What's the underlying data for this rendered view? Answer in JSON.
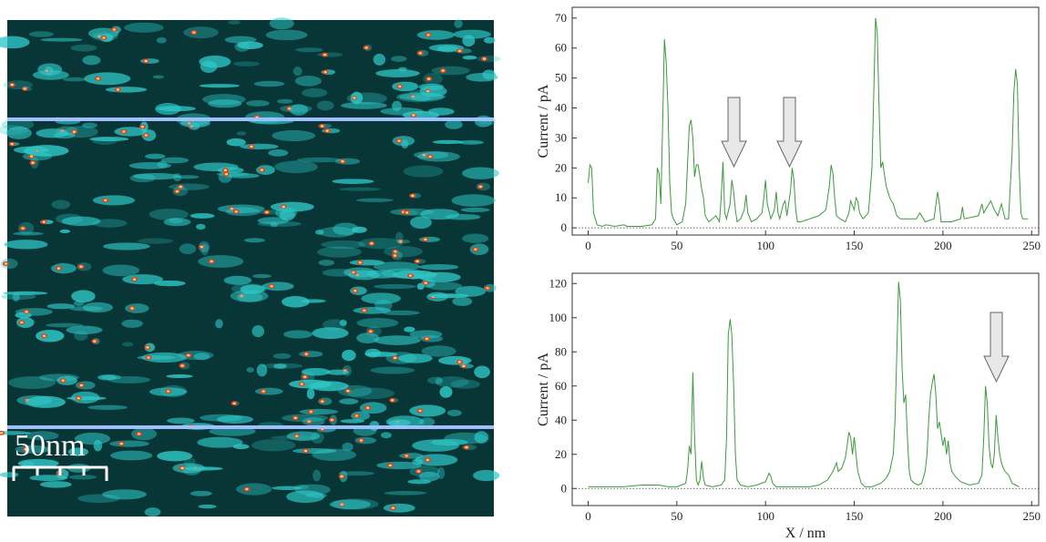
{
  "image": {
    "scale_label": "50nm"
  },
  "chart_data": [
    {
      "type": "line",
      "y_label": "Current / pA",
      "color": "#3c9a3c",
      "xlim": [
        -9,
        254
      ],
      "ylim": [
        -2.4,
        73.6
      ],
      "xticks": [
        0,
        50,
        100,
        150,
        200,
        250
      ],
      "yticks": [
        0,
        10,
        20,
        30,
        40,
        50,
        60,
        70
      ],
      "x": [
        0,
        1,
        2,
        3,
        5,
        8,
        10,
        15,
        20,
        22,
        30,
        36,
        38,
        39,
        40,
        41,
        42,
        43,
        44,
        45,
        46,
        47,
        48,
        50,
        53,
        55,
        57,
        58,
        59,
        60,
        61,
        62,
        63,
        64,
        65,
        66,
        67,
        68,
        70,
        72,
        74,
        75,
        76,
        77,
        78,
        80,
        81,
        82,
        83,
        84,
        86,
        88,
        89,
        90,
        92,
        95,
        98,
        99,
        100,
        101,
        103,
        105,
        106,
        107,
        108,
        110,
        111,
        112,
        114,
        115,
        116,
        117,
        118,
        120,
        125,
        130,
        134,
        136,
        137,
        138,
        139,
        140,
        142,
        145,
        147,
        148,
        150,
        151,
        152,
        153,
        155,
        158,
        160,
        161,
        162,
        163,
        164,
        165,
        166,
        167,
        168,
        170,
        172,
        174,
        176,
        180,
        185,
        187,
        190,
        195,
        197,
        198,
        199,
        205,
        210,
        211,
        212,
        220,
        222,
        223,
        225,
        227,
        229,
        231,
        233,
        235,
        237,
        239,
        240,
        241,
        242,
        243,
        244,
        245,
        248
      ],
      "values": [
        15,
        21,
        20,
        5,
        1,
        0.5,
        1,
        0.5,
        1,
        0.5,
        0.5,
        1,
        3,
        20,
        18,
        8,
        35,
        63,
        55,
        40,
        15,
        5,
        3,
        1,
        2,
        8,
        34,
        36,
        30,
        17,
        21,
        21,
        17,
        13,
        10,
        4,
        3,
        2,
        3,
        4,
        2,
        10,
        22,
        5,
        3,
        8,
        16,
        12,
        6,
        2,
        3,
        6,
        11,
        5,
        2,
        3,
        5,
        10,
        16,
        8,
        3,
        6,
        12,
        5,
        3,
        8,
        9,
        4,
        12,
        20,
        16,
        6,
        2,
        2,
        3,
        4,
        6,
        14,
        21,
        18,
        10,
        4,
        3,
        2,
        5,
        9,
        6,
        10,
        9,
        5,
        3,
        5,
        20,
        45,
        70,
        65,
        40,
        20,
        22,
        18,
        14,
        10,
        8,
        4,
        3,
        3,
        3,
        5,
        2,
        3,
        12,
        8,
        2,
        2,
        3,
        7,
        3,
        4,
        8,
        5,
        7,
        9,
        6,
        4,
        8,
        3,
        3,
        25,
        45,
        53,
        48,
        20,
        5,
        3,
        3
      ]
    },
    {
      "type": "line",
      "y_label": "Current / pA",
      "x_label": "X / nm",
      "color": "#3c9a3c",
      "xlim": [
        -9,
        254
      ],
      "ylim": [
        -10,
        126
      ],
      "xticks": [
        0,
        50,
        100,
        150,
        200,
        250
      ],
      "yticks": [
        0,
        20,
        40,
        60,
        80,
        100,
        120
      ],
      "x": [
        0,
        10,
        20,
        30,
        35,
        40,
        45,
        50,
        55,
        56,
        57,
        58,
        59,
        60,
        61,
        62,
        63,
        64,
        65,
        66,
        70,
        75,
        77,
        78,
        79,
        80,
        81,
        82,
        83,
        84,
        86,
        90,
        95,
        100,
        102,
        103,
        104,
        106,
        110,
        115,
        120,
        125,
        130,
        135,
        138,
        140,
        141,
        143,
        145,
        146,
        147,
        148,
        149,
        150,
        151,
        152,
        154,
        156,
        160,
        165,
        168,
        170,
        172,
        173,
        174,
        175,
        176,
        177,
        178,
        179,
        180,
        181,
        182,
        184,
        186,
        188,
        190,
        191,
        192,
        193,
        194,
        195,
        196,
        197,
        198,
        199,
        200,
        201,
        202,
        203,
        204,
        205,
        207,
        210,
        215,
        220,
        222,
        223,
        224,
        225,
        226,
        227,
        228,
        229,
        230,
        231,
        232,
        233,
        234,
        235,
        237,
        239,
        241,
        243
      ],
      "values": [
        1,
        1,
        1,
        2,
        2,
        2,
        1,
        1,
        3,
        10,
        25,
        20,
        68,
        30,
        5,
        2,
        5,
        16,
        6,
        2,
        1,
        2,
        5,
        30,
        90,
        99,
        90,
        60,
        20,
        5,
        2,
        1,
        2,
        4,
        9,
        7,
        3,
        1,
        1,
        1,
        1,
        1,
        2,
        5,
        10,
        15,
        10,
        12,
        18,
        25,
        33,
        30,
        20,
        30,
        20,
        10,
        3,
        1,
        1,
        3,
        6,
        10,
        20,
        40,
        80,
        121,
        110,
        70,
        50,
        55,
        30,
        10,
        5,
        3,
        2,
        3,
        10,
        20,
        40,
        55,
        62,
        67,
        55,
        35,
        39,
        32,
        25,
        30,
        20,
        28,
        15,
        10,
        7,
        4,
        2,
        3,
        8,
        30,
        60,
        50,
        25,
        15,
        12,
        20,
        43,
        30,
        20,
        15,
        12,
        10,
        8,
        3,
        2,
        1
      ]
    }
  ]
}
